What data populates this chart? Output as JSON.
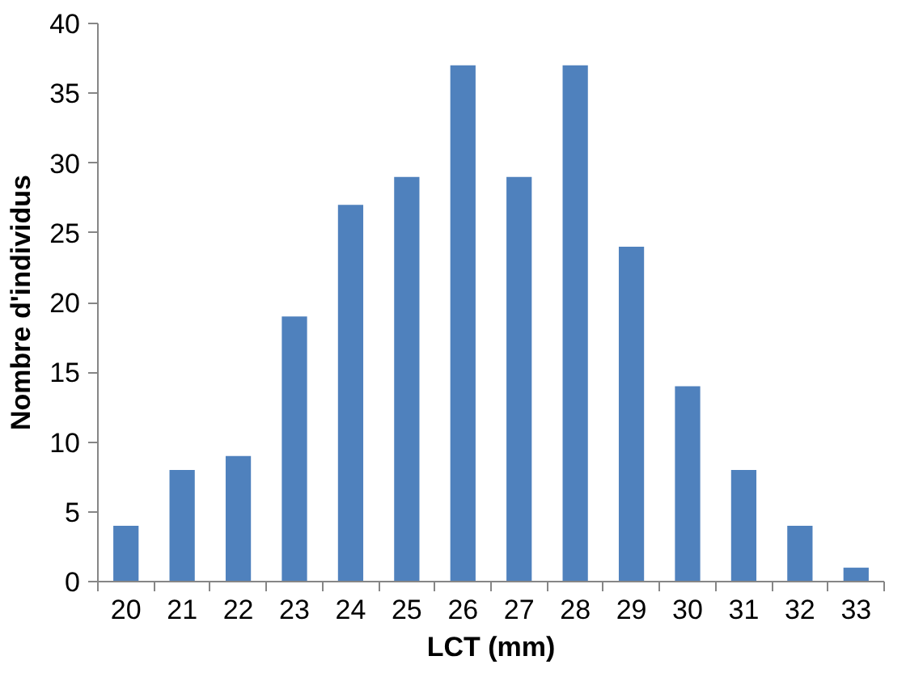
{
  "chart_data": {
    "type": "bar",
    "xlabel": "LCT (mm)",
    "ylabel": "Nombre d'individus",
    "categories": [
      "20",
      "21",
      "22",
      "23",
      "24",
      "25",
      "26",
      "27",
      "28",
      "29",
      "30",
      "31",
      "32",
      "33"
    ],
    "values": [
      4,
      8,
      9,
      19,
      27,
      29,
      37,
      29,
      37,
      24,
      14,
      8,
      4,
      1
    ],
    "color": "#4f81bd",
    "ylim": [
      0,
      40
    ],
    "yticks": [
      0,
      5,
      10,
      15,
      20,
      25,
      30,
      35,
      40
    ],
    "grid": false
  }
}
